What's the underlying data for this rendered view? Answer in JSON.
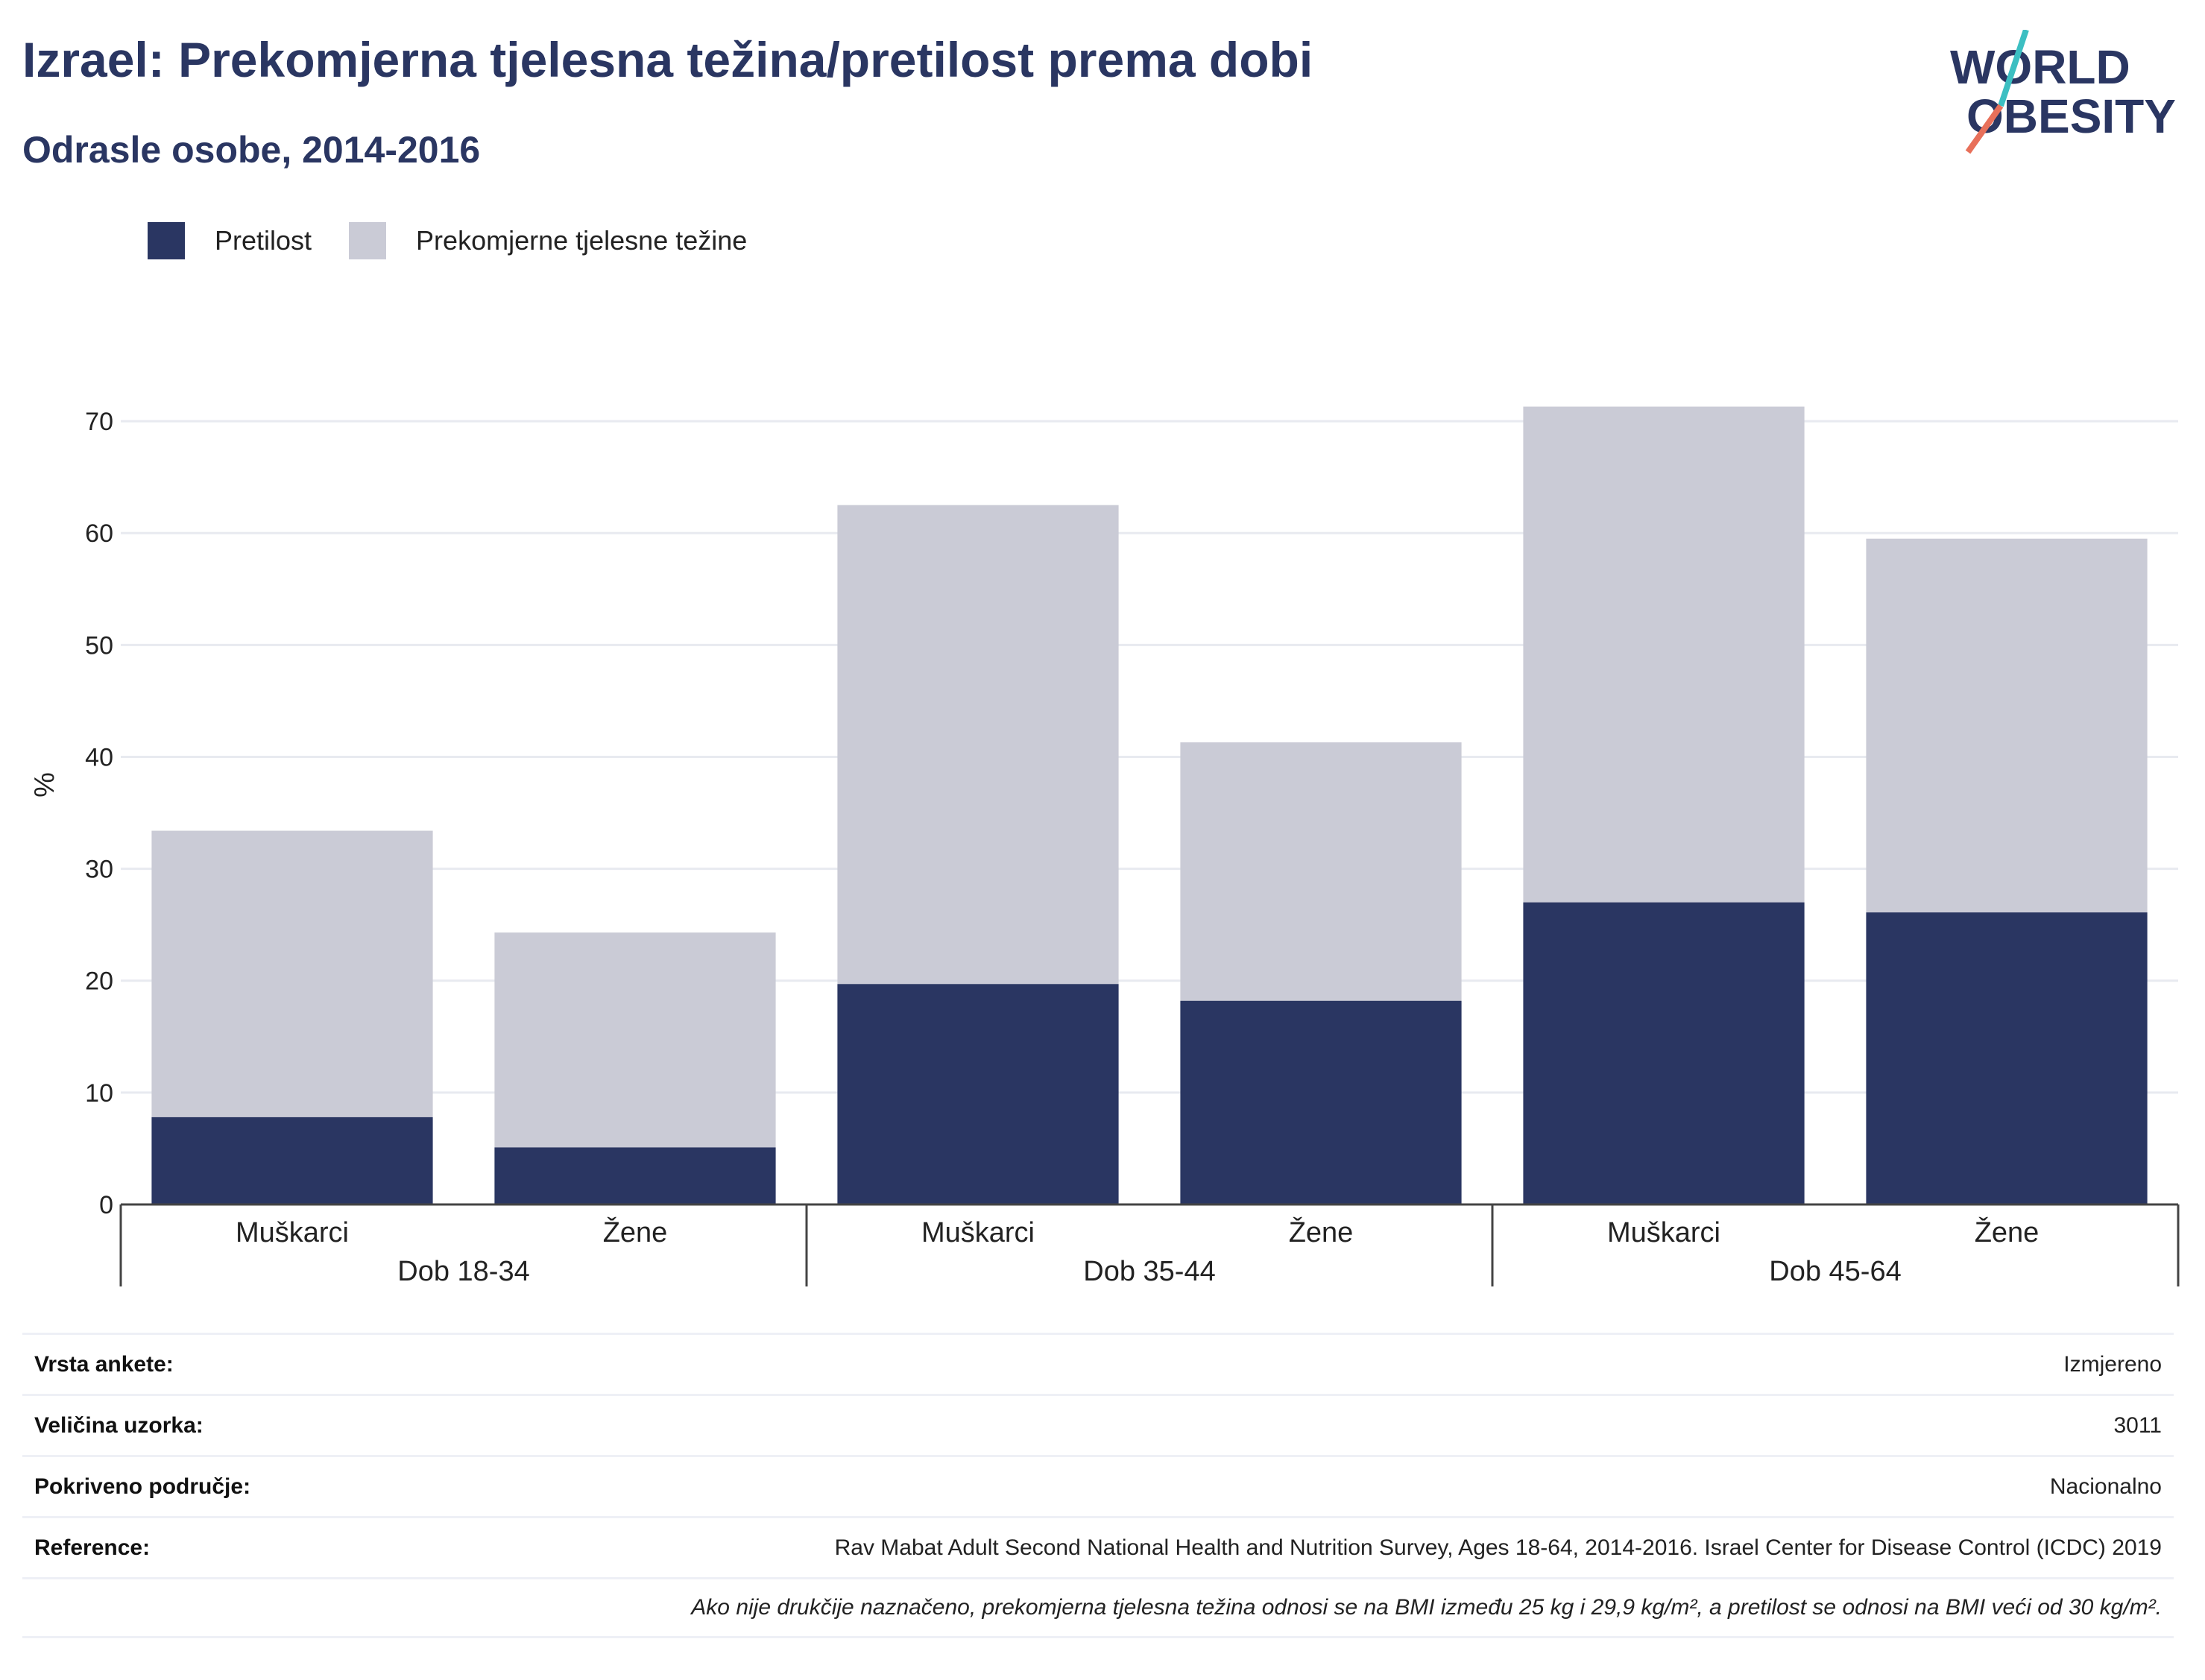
{
  "header": {
    "title": "Izrael: Prekomjerna tjelesna težina/pretilost prema dobi",
    "subtitle": "Odrasle osobe, 2014-2016"
  },
  "logo": {
    "line1": "WORLD",
    "line2": "OBESITY"
  },
  "colors": {
    "obesity": "#2a3662",
    "overweight": "#cacbd6",
    "title": "#2a3662",
    "grid": "#e8eaf0",
    "logo_teal": "#3cbfc2",
    "logo_coral": "#e8705a"
  },
  "chart_data": {
    "type": "bar",
    "stacked": true,
    "ylabel": "%",
    "ylim": [
      0,
      75
    ],
    "yticks": [
      0,
      10,
      20,
      30,
      40,
      50,
      60,
      70
    ],
    "grid": true,
    "legend_position": "top-left",
    "groups": [
      "Dob 18-34",
      "Dob 35-44",
      "Dob 45-64"
    ],
    "categories": [
      "Muškarci",
      "Žene",
      "Muškarci",
      "Žene",
      "Muškarci",
      "Žene"
    ],
    "series": [
      {
        "name": "Pretilost",
        "values": [
          7.8,
          5.1,
          19.7,
          18.2,
          27.0,
          26.1
        ]
      },
      {
        "name": "Prekomjerne tjelesne težine",
        "values": [
          25.6,
          19.2,
          42.8,
          23.1,
          44.3,
          33.4
        ]
      }
    ]
  },
  "metadata": [
    {
      "label": "Vrsta ankete:",
      "value": "Izmjereno"
    },
    {
      "label": "Veličina uzorka:",
      "value": "3011"
    },
    {
      "label": "Pokriveno područje:",
      "value": "Nacionalno"
    },
    {
      "label": "Reference:",
      "value": "Rav Mabat Adult Second National Health and Nutrition Survey, Ages 18-64, 2014-2016. Israel Center for Disease Control (ICDC) 2019"
    }
  ],
  "footnote": "Ako nije drukčije naznačeno, prekomjerna tjelesna težina odnosi se na BMI između 25 kg i 29,9 kg/m², a pretilost se odnosi na BMI veći od 30 kg/m²."
}
